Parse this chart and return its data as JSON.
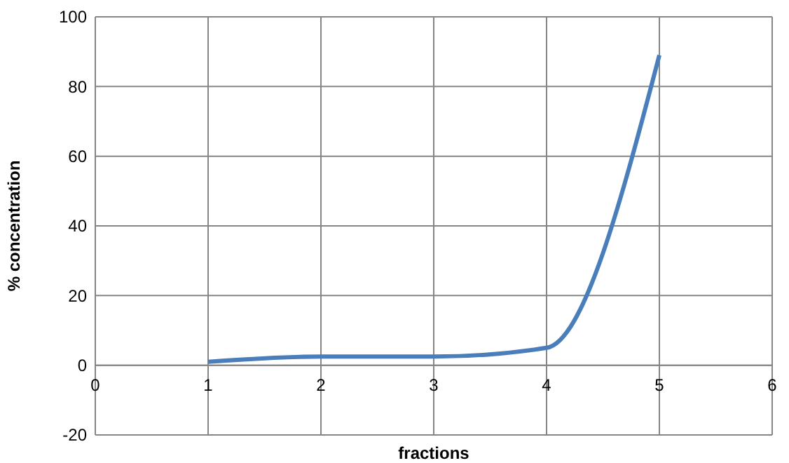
{
  "chart_data": {
    "type": "line",
    "xlabel": "fractions",
    "ylabel": "% concentration",
    "x": [
      1,
      2,
      3,
      4,
      5
    ],
    "series": [
      {
        "color": "#4a7ebb",
        "values": [
          1,
          2.5,
          2.5,
          5,
          89
        ]
      }
    ],
    "xlim": [
      0,
      6
    ],
    "xticks": [
      0,
      1,
      2,
      3,
      4,
      5,
      6
    ],
    "ylim": [
      -20,
      100
    ],
    "yticks": [
      -20,
      0,
      20,
      40,
      60,
      80,
      100
    ],
    "grid": true,
    "marker": "none",
    "line_style": "solid"
  }
}
